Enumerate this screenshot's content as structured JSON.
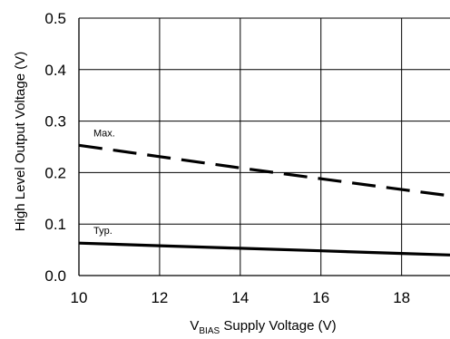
{
  "chart_data": {
    "type": "line",
    "xlabel": {
      "main": "V",
      "sub": "BIAS",
      "rest": " Supply Voltage  (V)"
    },
    "ylabel": "High Level Output Voltage (V)",
    "xlim": [
      10,
      19.2
    ],
    "ylim": [
      0.0,
      0.5
    ],
    "x_ticks": [
      10,
      12,
      14,
      16,
      18
    ],
    "x_tick_labels": [
      "10",
      "12",
      "14",
      "16",
      "18"
    ],
    "y_ticks": [
      0.0,
      0.1,
      0.2,
      0.3,
      0.4,
      0.5
    ],
    "y_tick_labels": [
      "0.0",
      "0.1",
      "0.2",
      "0.3",
      "0.4",
      "0.5"
    ],
    "grid": true,
    "series": [
      {
        "name": "Max.",
        "style": "dashed",
        "x": [
          10,
          12,
          14,
          16,
          18,
          19.2
        ],
        "y": [
          0.253,
          0.231,
          0.209,
          0.188,
          0.167,
          0.155
        ]
      },
      {
        "name": "Typ.",
        "style": "solid",
        "x": [
          10,
          12,
          14,
          16,
          18,
          19.2
        ],
        "y": [
          0.063,
          0.058,
          0.053,
          0.048,
          0.043,
          0.04
        ]
      }
    ]
  }
}
